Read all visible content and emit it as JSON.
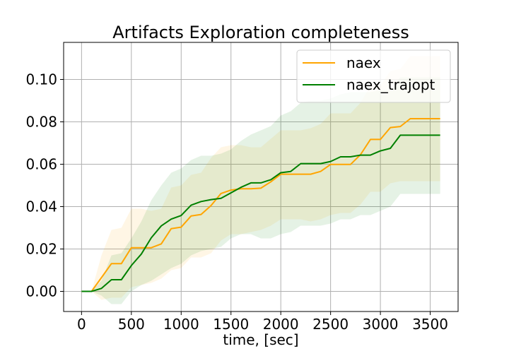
{
  "chart_data": {
    "type": "line",
    "title": "Artifacts Exploration completeness",
    "xlabel": "time, [sec]",
    "ylabel": "",
    "xlim": [
      -180,
      3780
    ],
    "ylim": [
      -0.0095,
      0.1175
    ],
    "xticks": [
      0,
      500,
      1000,
      1500,
      2000,
      2500,
      3000,
      3500
    ],
    "xtick_labels": [
      "0",
      "500",
      "1000",
      "1500",
      "2000",
      "2500",
      "3000",
      "3500"
    ],
    "yticks": [
      0.0,
      0.02,
      0.04,
      0.06,
      0.08,
      0.1
    ],
    "ytick_labels": [
      "0.00",
      "0.02",
      "0.04",
      "0.06",
      "0.08",
      "0.10"
    ],
    "grid": true,
    "legend_position": "upper-right",
    "x": [
      0,
      100,
      200,
      300,
      400,
      500,
      600,
      700,
      800,
      900,
      1000,
      1100,
      1200,
      1300,
      1400,
      1500,
      1600,
      1700,
      1800,
      1900,
      2000,
      2100,
      2200,
      2300,
      2400,
      2500,
      2600,
      2700,
      2800,
      2900,
      3000,
      3100,
      3200,
      3300,
      3400,
      3500,
      3600
    ],
    "series": [
      {
        "name": "naex",
        "color": "#ffa500",
        "values": [
          0.0,
          0.0,
          0.0065,
          0.0131,
          0.0131,
          0.0206,
          0.0206,
          0.0206,
          0.0224,
          0.0296,
          0.0303,
          0.0356,
          0.0363,
          0.0405,
          0.0462,
          0.0478,
          0.0484,
          0.0484,
          0.0487,
          0.0517,
          0.0553,
          0.0553,
          0.0553,
          0.0553,
          0.0566,
          0.0599,
          0.0599,
          0.0599,
          0.0645,
          0.0717,
          0.0717,
          0.0773,
          0.0778,
          0.0815,
          0.0815,
          0.0815,
          0.0815
        ],
        "lower": [
          0.0,
          0.0,
          -0.004,
          -0.003,
          -0.003,
          0.002,
          0.003,
          0.004,
          0.006,
          0.01,
          0.011,
          0.016,
          0.016,
          0.018,
          0.024,
          0.027,
          0.027,
          0.028,
          0.029,
          0.031,
          0.034,
          0.034,
          0.034,
          0.033,
          0.034,
          0.036,
          0.037,
          0.037,
          0.041,
          0.047,
          0.047,
          0.051,
          0.052,
          0.052,
          0.052,
          0.052,
          0.052
        ],
        "upper": [
          0.0,
          0.0,
          0.017,
          0.029,
          0.03,
          0.039,
          0.039,
          0.038,
          0.039,
          0.049,
          0.05,
          0.055,
          0.056,
          0.063,
          0.068,
          0.069,
          0.069,
          0.068,
          0.068,
          0.072,
          0.076,
          0.076,
          0.076,
          0.077,
          0.079,
          0.084,
          0.084,
          0.084,
          0.089,
          0.097,
          0.097,
          0.104,
          0.105,
          0.111,
          0.111,
          0.111,
          0.111
        ]
      },
      {
        "name": "naex_trajopt",
        "color": "#008000",
        "values": [
          0.0,
          0.0,
          0.0014,
          0.0055,
          0.0055,
          0.0122,
          0.0176,
          0.0253,
          0.0309,
          0.0341,
          0.0358,
          0.0407,
          0.0424,
          0.0433,
          0.0439,
          0.0465,
          0.0491,
          0.0512,
          0.0512,
          0.0527,
          0.056,
          0.0566,
          0.0603,
          0.0603,
          0.0603,
          0.0613,
          0.0635,
          0.0635,
          0.0643,
          0.0643,
          0.0663,
          0.0675,
          0.0737,
          0.0737,
          0.0737,
          0.0737,
          0.0737
        ],
        "lower": [
          0.0,
          0.0,
          -0.002,
          -0.006,
          -0.006,
          0.0,
          0.003,
          0.005,
          0.008,
          0.011,
          0.013,
          0.017,
          0.019,
          0.02,
          0.021,
          0.025,
          0.027,
          0.027,
          0.025,
          0.025,
          0.027,
          0.028,
          0.031,
          0.031,
          0.031,
          0.032,
          0.034,
          0.034,
          0.036,
          0.036,
          0.038,
          0.04,
          0.046,
          0.046,
          0.046,
          0.046,
          0.046
        ],
        "upper": [
          0.0,
          0.0,
          0.005,
          0.017,
          0.018,
          0.025,
          0.033,
          0.043,
          0.05,
          0.056,
          0.058,
          0.062,
          0.064,
          0.064,
          0.065,
          0.067,
          0.071,
          0.074,
          0.076,
          0.078,
          0.083,
          0.085,
          0.089,
          0.09,
          0.09,
          0.091,
          0.093,
          0.094,
          0.094,
          0.094,
          0.095,
          0.095,
          0.101,
          0.101,
          0.101,
          0.101,
          0.101
        ]
      }
    ]
  }
}
